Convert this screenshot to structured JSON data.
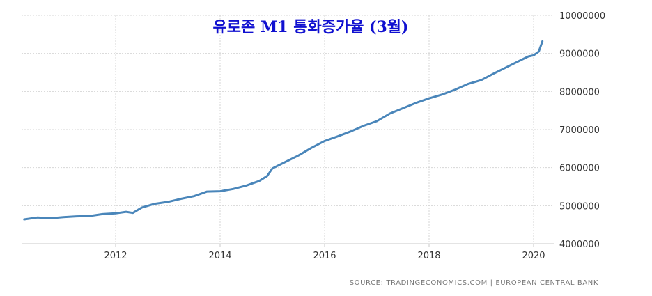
{
  "chart_data": {
    "type": "line",
    "title": "유로존 M1 통화증가율 (3월)",
    "xlabel": "",
    "ylabel": "",
    "x_ticks": [
      "2012",
      "2014",
      "2016",
      "2018",
      "2020"
    ],
    "y_ticks": [
      "4000000",
      "5000000",
      "6000000",
      "7000000",
      "8000000",
      "9000000",
      "10000000"
    ],
    "xlim": [
      2010.2,
      2020.4
    ],
    "ylim": [
      4000000,
      10000000
    ],
    "grid": true,
    "color": "#4a86ba",
    "series": [
      {
        "x": [
          2010.25,
          2010.5,
          2010.75,
          2011.0,
          2011.25,
          2011.5,
          2011.75,
          2012.0,
          2012.2,
          2012.33,
          2012.5,
          2012.75,
          2013.0,
          2013.25,
          2013.5,
          2013.75,
          2014.0,
          2014.25,
          2014.5,
          2014.75,
          2014.9,
          2015.0,
          2015.25,
          2015.5,
          2015.75,
          2016.0,
          2016.25,
          2016.5,
          2016.75,
          2017.0,
          2017.25,
          2017.5,
          2017.75,
          2018.0,
          2018.25,
          2018.5,
          2018.75,
          2019.0,
          2019.25,
          2019.5,
          2019.75,
          2019.9,
          2020.0,
          2020.1,
          2020.17
        ],
        "y": [
          4640000,
          4690000,
          4670000,
          4700000,
          4720000,
          4730000,
          4780000,
          4800000,
          4840000,
          4810000,
          4950000,
          5050000,
          5100000,
          5180000,
          5250000,
          5370000,
          5380000,
          5440000,
          5530000,
          5650000,
          5780000,
          5980000,
          6150000,
          6320000,
          6520000,
          6700000,
          6820000,
          6950000,
          7100000,
          7220000,
          7420000,
          7560000,
          7700000,
          7820000,
          7920000,
          8050000,
          8200000,
          8300000,
          8480000,
          8650000,
          8820000,
          8920000,
          8950000,
          9050000,
          9320000
        ]
      }
    ]
  },
  "source": "SOURCE: TRADINGECONOMICS.COM  |  EUROPEAN CENTRAL BANK"
}
